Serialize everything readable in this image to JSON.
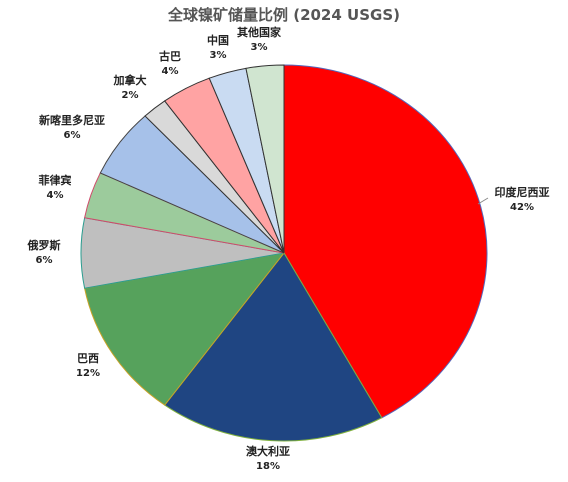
{
  "chart_data": {
    "type": "pie",
    "title": "全球镍矿储量比例 (2024 USGS)",
    "slices": [
      {
        "label": "印度尼西亚",
        "value": 42,
        "display": "42%",
        "color": "#ff0000",
        "edge": "#5566bb"
      },
      {
        "label": "澳大利亚",
        "value": 18,
        "display": "18%",
        "color": "#1f4582",
        "edge": "#7fb03e"
      },
      {
        "label": "巴西",
        "value": 12,
        "display": "12%",
        "color": "#56a25c",
        "edge": "#c9a227"
      },
      {
        "label": "俄罗斯",
        "value": 6,
        "display": "6%",
        "color": "#bfbfbf",
        "edge": "#2a9d8f"
      },
      {
        "label": "菲律宾",
        "value": 4,
        "display": "4%",
        "color": "#9ccb9c",
        "edge": "#d04a6a"
      },
      {
        "label": "新喀里多尼亚",
        "value": 6,
        "display": "6%",
        "color": "#a6c1e9",
        "edge": "#444444"
      },
      {
        "label": "加拿大",
        "value": 2,
        "display": "2%",
        "color": "#d9d9d9",
        "edge": "#333333"
      },
      {
        "label": "古巴",
        "value": 4,
        "display": "4%",
        "color": "#ffa3a3",
        "edge": "#333333"
      },
      {
        "label": "中国",
        "value": 3,
        "display": "3%",
        "color": "#c9dbf2",
        "edge": "#333333"
      },
      {
        "label": "其他国家",
        "value": 3,
        "display": "3%",
        "color": "#d0e5d0",
        "edge": "#333333"
      }
    ]
  }
}
